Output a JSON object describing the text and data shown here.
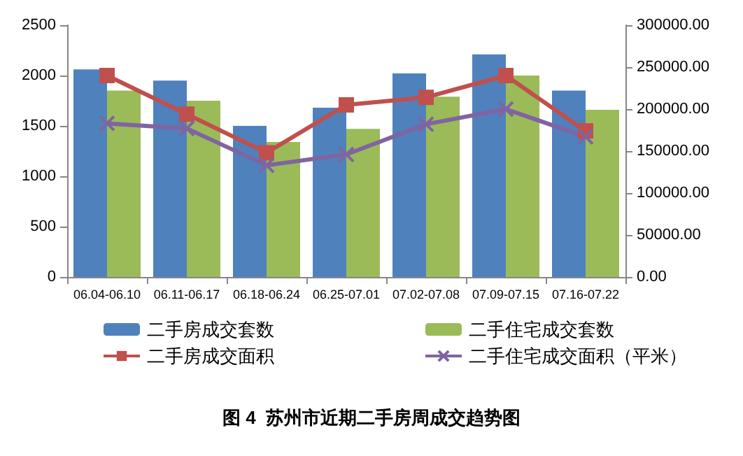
{
  "chart_data": {
    "type": "bar",
    "title": "图 4  苏州市近期二手房周成交趋势图",
    "categories": [
      "06.04-06.10",
      "06.11-06.17",
      "06.18-06.24",
      "06.25-07.01",
      "07.02-07.08",
      "07.09-07.15",
      "07.16-07.22"
    ],
    "series": [
      {
        "name": "二手房成交套数",
        "color": "#4f81bd",
        "values": [
          2060,
          1950,
          1500,
          1680,
          2020,
          2210,
          1850
        ]
      },
      {
        "name": "二手住宅成交套数",
        "color": "#9bbb59",
        "values": [
          1850,
          1750,
          1340,
          1470,
          1790,
          2000,
          1660
        ]
      },
      {
        "name": "二手房成交面积",
        "type": "line",
        "axis": "y2",
        "marker": "square",
        "color": "#c0504d",
        "values": [
          240000,
          194000,
          148000,
          205000,
          214000,
          240000,
          174000
        ]
      },
      {
        "name": "二手住宅成交面积（平米）",
        "type": "line",
        "axis": "y2",
        "marker": "cross",
        "color": "#8064a2",
        "values": [
          183000,
          177000,
          133000,
          146000,
          182000,
          200000,
          167000
        ]
      }
    ],
    "ylim": [
      0,
      2500
    ],
    "yticks": [
      0,
      500,
      1000,
      1500,
      2000,
      2500
    ],
    "y2lim": [
      0,
      300000
    ],
    "y2ticks": [
      {
        "value": 0,
        "label": "0.00"
      },
      {
        "value": 50000,
        "label": "50000.00"
      },
      {
        "value": 100000,
        "label": "100000.00"
      },
      {
        "value": 150000,
        "label": "150000.00"
      },
      {
        "value": 200000,
        "label": "200000.00"
      },
      {
        "value": 250000,
        "label": "250000.00"
      },
      {
        "value": 300000,
        "label": "300000.00"
      }
    ],
    "legend": "bottom",
    "grid": false
  }
}
